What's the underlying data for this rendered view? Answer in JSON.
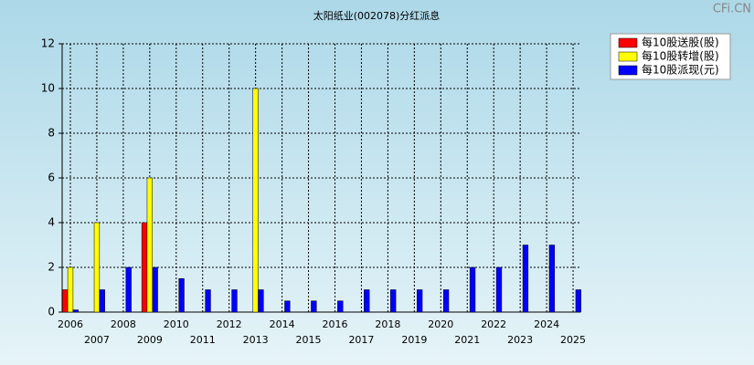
{
  "chart_data": {
    "type": "bar",
    "title": "太阳纸业(002078)分红派息",
    "watermark": "CFi.CN",
    "categories": [
      "2006",
      "2007",
      "2008",
      "2009",
      "2010",
      "2011",
      "2012",
      "2013",
      "2014",
      "2015",
      "2016",
      "2017",
      "2018",
      "2019",
      "2020",
      "2021",
      "2022",
      "2023",
      "2024",
      "2025"
    ],
    "series": [
      {
        "name": "每10股送股(股)",
        "color": "#ff0000",
        "values": [
          1,
          0,
          0,
          4,
          0,
          0,
          0,
          0,
          0,
          0,
          0,
          0,
          0,
          0,
          0,
          0,
          0,
          0,
          0,
          0
        ]
      },
      {
        "name": "每10股转增(股)",
        "color": "#ffff00",
        "values": [
          2,
          4,
          0,
          6,
          0,
          0,
          0,
          10,
          0,
          0,
          0,
          0,
          0,
          0,
          0,
          0,
          0,
          0,
          0,
          0
        ]
      },
      {
        "name": "每10股派现(元)",
        "color": "#0000ff",
        "values": [
          0.1,
          1,
          2,
          2,
          1.5,
          1,
          1,
          1,
          0.5,
          0.5,
          0.5,
          1,
          1,
          1,
          1,
          2,
          2,
          3,
          3,
          1
        ]
      }
    ],
    "ylim": [
      0,
      12
    ],
    "yticks": [
      0,
      2,
      4,
      6,
      8,
      10,
      12
    ],
    "grid": true,
    "legend": "top-right"
  }
}
